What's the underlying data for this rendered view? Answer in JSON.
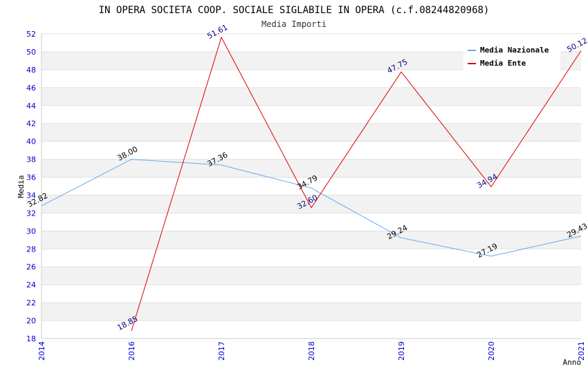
{
  "chart_data": {
    "type": "line",
    "title": "IN OPERA SOCIETA COOP. SOCIALE SIGLABILE IN OPERA (c.f.08244820968)",
    "subtitle": "Media Importi",
    "xlabel": "Anno",
    "ylabel": "Media",
    "x": [
      "2014",
      "2016",
      "2017",
      "2018",
      "2019",
      "2020",
      "2021"
    ],
    "ylim": [
      18,
      52
    ],
    "yticks": [
      "18",
      "20",
      "22",
      "24",
      "26",
      "28",
      "30",
      "32",
      "34",
      "36",
      "38",
      "40",
      "42",
      "44",
      "46",
      "48",
      "50",
      "52"
    ],
    "grid": "horizontal alternating bands",
    "legend_position": "top-right",
    "series": [
      {
        "name": "Media Nazionale",
        "color": "#66aaee",
        "values": [
          32.82,
          38.0,
          37.36,
          34.79,
          29.24,
          27.19,
          29.43
        ],
        "labels": [
          "32.82",
          "38.00",
          "37.36",
          "34.79",
          "29.24",
          "27.19",
          "29.43"
        ]
      },
      {
        "name": "Media Ente",
        "color": "#dd0000",
        "values": [
          null,
          18.85,
          51.61,
          32.6,
          47.75,
          34.94,
          50.12
        ],
        "labels": [
          "",
          "18.85",
          "51.61",
          "32.60",
          "47.75",
          "34.94",
          "50.12"
        ]
      }
    ]
  }
}
